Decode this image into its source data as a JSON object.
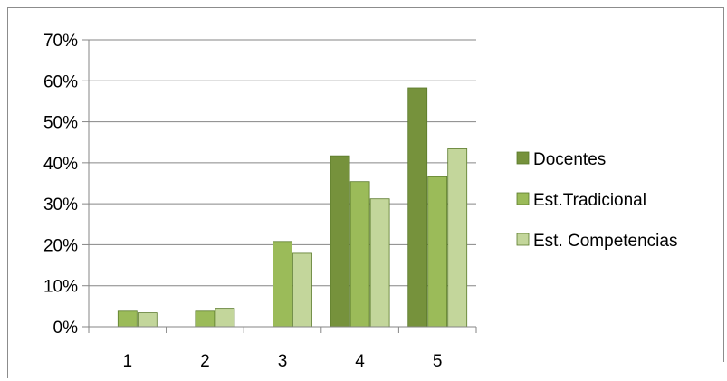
{
  "chart_data": {
    "type": "bar",
    "title": "",
    "xlabel": "",
    "ylabel": "",
    "categories": [
      "1",
      "2",
      "3",
      "4",
      "5"
    ],
    "ylim": [
      0,
      70
    ],
    "yticks": [
      "0%",
      "10%",
      "20%",
      "30%",
      "40%",
      "50%",
      "60%",
      "70%"
    ],
    "ytick_values": [
      0,
      10,
      20,
      30,
      40,
      50,
      60,
      70
    ],
    "grid": true,
    "legend_position": "right",
    "series": [
      {
        "name": "Docentes",
        "color": "#76923c",
        "values": [
          0,
          0,
          0,
          41.7,
          58.3
        ]
      },
      {
        "name": "Est.Tradicional",
        "color": "#9bbb59",
        "values": [
          3.8,
          3.8,
          20.8,
          35.4,
          36.6
        ]
      },
      {
        "name": "Est. Competencias",
        "color": "#c3d69b",
        "values": [
          3.4,
          4.5,
          17.9,
          31.2,
          43.4
        ]
      }
    ]
  }
}
